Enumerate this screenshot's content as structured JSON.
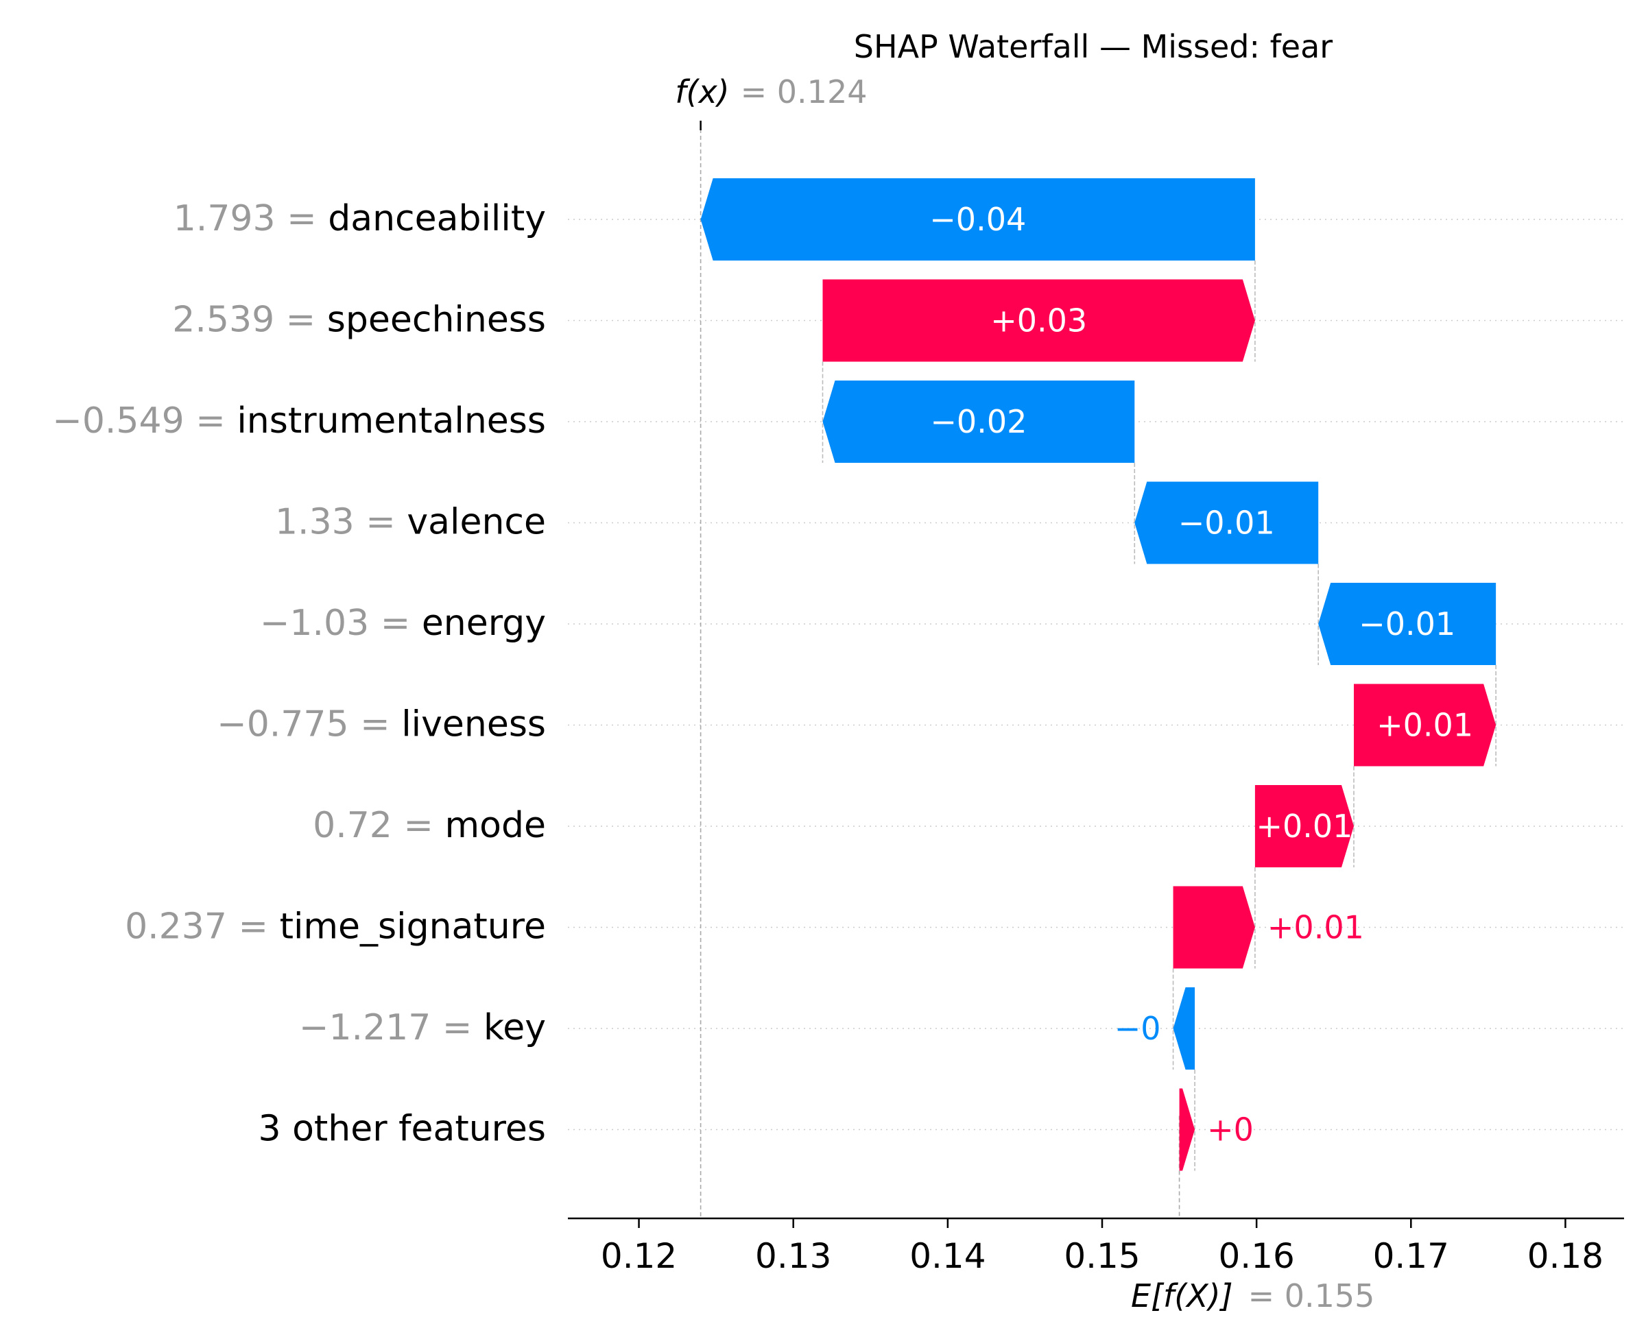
{
  "chart_data": {
    "type": "waterfall",
    "title": "SHAP Waterfall — Missed: fear",
    "fx_label": "f(x)",
    "fx_value_text": "= 0.124",
    "fx": 0.124,
    "ex_label": "E[f(X)]",
    "ex_value_text": "= 0.155",
    "base_value": 0.155,
    "xlim": [
      0.1154,
      0.1838
    ],
    "x_ticks": [
      0.12,
      0.13,
      0.14,
      0.15,
      0.16,
      0.17,
      0.18
    ],
    "x_tick_labels": [
      "0.12",
      "0.13",
      "0.14",
      "0.15",
      "0.16",
      "0.17",
      "0.18"
    ],
    "colors": {
      "positive": "#ff0051",
      "negative": "#008bfb",
      "muted": "#999999",
      "text": "#000000"
    },
    "features": [
      {
        "value_text": "1.793 =",
        "name": "danceability",
        "shap": -0.0361,
        "label": "−0.04",
        "label_inside": true
      },
      {
        "value_text": "2.539 =",
        "name": "speechiness",
        "shap": 0.028,
        "label": "+0.03",
        "label_inside": true
      },
      {
        "value_text": "−0.549 =",
        "name": "instrumentalness",
        "shap": -0.0202,
        "label": "−0.02",
        "label_inside": true
      },
      {
        "value_text": "1.33 =",
        "name": "valence",
        "shap": -0.0119,
        "label": "−0.01",
        "label_inside": true
      },
      {
        "value_text": "−1.03 =",
        "name": "energy",
        "shap": -0.0115,
        "label": "−0.01",
        "label_inside": true
      },
      {
        "value_text": "−0.775 =",
        "name": "liveness",
        "shap": 0.0092,
        "label": "+0.01",
        "label_inside": true
      },
      {
        "value_text": "0.72 =",
        "name": "mode",
        "shap": 0.0064,
        "label": "+0.01",
        "label_inside": true
      },
      {
        "value_text": "0.237 =",
        "name": "time_signature",
        "shap": 0.0053,
        "label": "+0.01",
        "label_inside": false
      },
      {
        "value_text": "−1.217 =",
        "name": "key",
        "shap": -0.0014,
        "label": "−0",
        "label_inside": false
      },
      {
        "value_text": "",
        "name": "3 other features",
        "shap": 0.001,
        "label": "+0",
        "label_inside": false
      }
    ]
  }
}
